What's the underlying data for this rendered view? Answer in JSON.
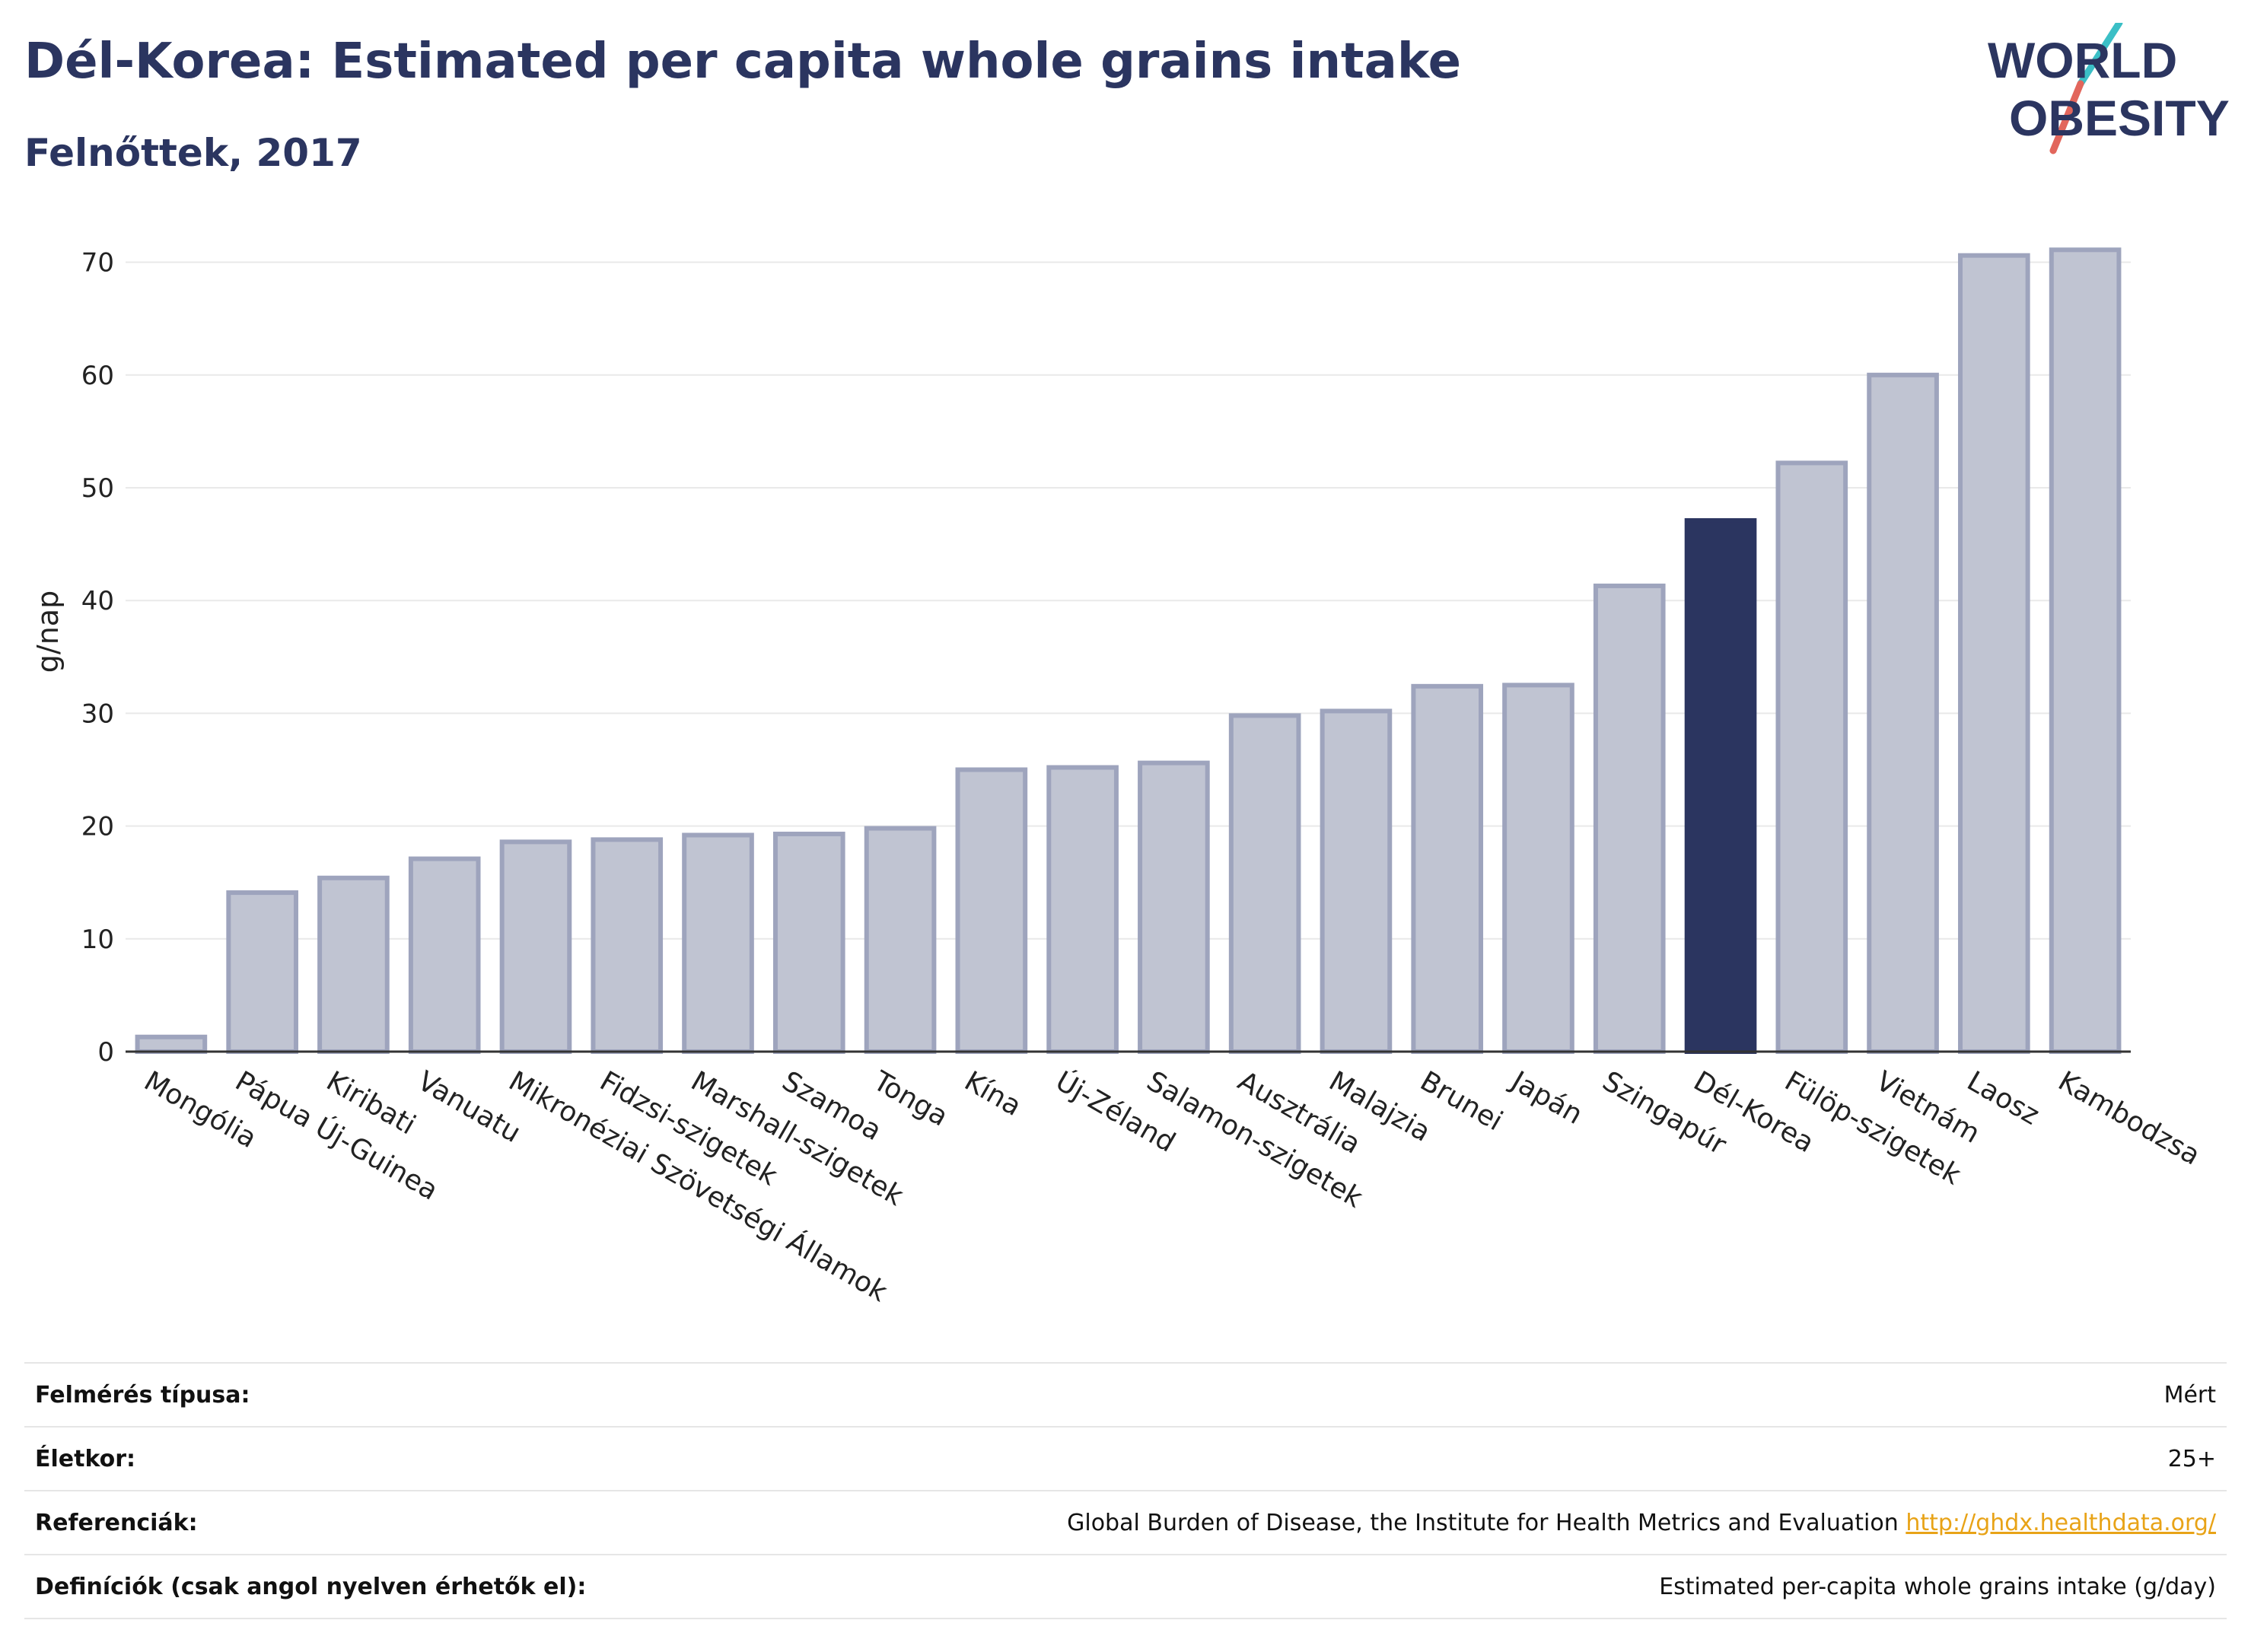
{
  "header": {
    "title": "Dél-Korea: Estimated per capita whole grains intake",
    "subtitle": "Felnőttek, 2017"
  },
  "logo": {
    "line1": "WORLD",
    "line2": "OBESITY",
    "colors": {
      "text": "#2b3560",
      "accent_teal": "#3bbfc6",
      "accent_red": "#e2665c"
    }
  },
  "chart_data": {
    "type": "bar",
    "ylabel": "g/nap",
    "ylim": [
      0,
      75
    ],
    "yticks": [
      0,
      10,
      20,
      30,
      40,
      50,
      60,
      70
    ],
    "grid": true,
    "highlight": "Dél-Korea",
    "colors": {
      "bar": "#c0c4d2",
      "bar_edge": "#9ea4bd",
      "highlight": "#2b3560"
    },
    "categories": [
      "Mongólia",
      "Pápua Új-Guinea",
      "Kiribati",
      "Vanuatu",
      "Mikronéziai Szövetségi Államok",
      "Fidzsi-szigetek",
      "Marshall-szigetek",
      "Szamoa",
      "Tonga",
      "Kína",
      "Új-Zéland",
      "Salamon-szigetek",
      "Ausztrália",
      "Malajzia",
      "Brunei",
      "Japán",
      "Szingapúr",
      "Dél-Korea",
      "Fülöp-szigetek",
      "Vietnám",
      "Laosz",
      "Kambodzsa"
    ],
    "values": [
      1.3,
      14.1,
      15.4,
      17.1,
      18.6,
      18.8,
      19.2,
      19.3,
      19.8,
      25.0,
      25.2,
      25.6,
      29.8,
      30.2,
      32.4,
      32.5,
      41.3,
      47.1,
      52.2,
      60.0,
      70.6,
      71.1
    ]
  },
  "info": {
    "rows": [
      {
        "label": "Felmérés típusa:",
        "value": "Mért"
      },
      {
        "label": "Életkor:",
        "value": "25+"
      },
      {
        "label": "Referenciák:",
        "value": "Global Burden of Disease, the Institute for Health Metrics and Evaluation",
        "link": "http://ghdx.healthdata.org/"
      },
      {
        "label": "Definíciók (csak angol nyelven érhetők el):",
        "value": "Estimated per-capita whole grains intake (g/day)"
      }
    ]
  }
}
